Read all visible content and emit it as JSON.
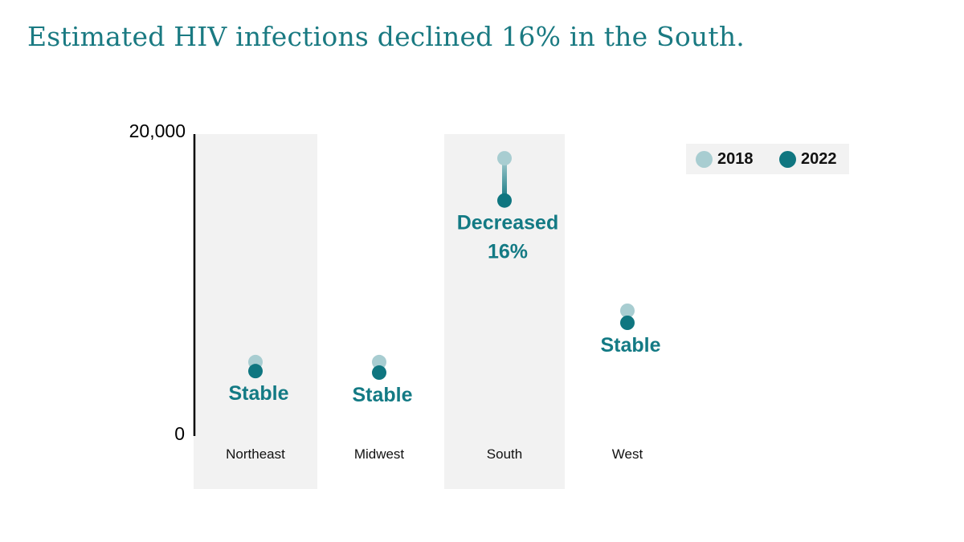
{
  "title": "Estimated HIV infections declined 16% in the South.",
  "colors": {
    "y2018": "#a8cdd1",
    "y2022": "#0f7680",
    "accent": "#137a84",
    "band": "#f2f2f2"
  },
  "legend": [
    {
      "label": "2018",
      "color": "#a8cdd1"
    },
    {
      "label": "2022",
      "color": "#0f7680"
    }
  ],
  "chart_data": {
    "type": "dumbbell",
    "title": "Estimated HIV infections declined 16% in the South.",
    "xlabel": "",
    "ylabel": "",
    "ylim": [
      0,
      20000
    ],
    "y_ticks": [
      "0",
      "20,000"
    ],
    "grid": false,
    "legend_position": "top-right",
    "categories": [
      "Northeast",
      "Midwest",
      "South",
      "West"
    ],
    "series": [
      {
        "name": "2018",
        "values": [
          4900,
          4900,
          18400,
          8300
        ]
      },
      {
        "name": "2022",
        "values": [
          4300,
          4200,
          15600,
          7500
        ]
      }
    ],
    "shaded_categories": [
      "Northeast",
      "South"
    ],
    "annotations": [
      {
        "category": "Northeast",
        "lines": [
          "Stable"
        ]
      },
      {
        "category": "Midwest",
        "lines": [
          "Stable"
        ]
      },
      {
        "category": "South",
        "lines": [
          "Decreased",
          "16%"
        ]
      },
      {
        "category": "West",
        "lines": [
          "Stable"
        ]
      }
    ]
  }
}
